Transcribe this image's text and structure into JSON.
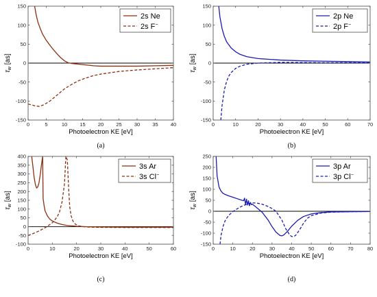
{
  "chart_data": [
    {
      "type": "line",
      "panel_label": "(a)",
      "xlabel": "Photoelectron KE [eV]",
      "ylabel_main": "τ",
      "ylabel_sub": "w",
      "ylabel_unit": "[as]",
      "xlim": [
        0,
        40
      ],
      "ylim": [
        -150,
        150
      ],
      "xticks": [
        0,
        5,
        10,
        15,
        20,
        25,
        30,
        35,
        40
      ],
      "yticks": [
        -150,
        -100,
        -50,
        0,
        50,
        100,
        150
      ],
      "legend_position": "top-right",
      "colors": {
        "primary": "#8b2e0f"
      },
      "series": [
        {
          "name": "2s Ne",
          "style": "solid",
          "x": [
            1.8,
            2.2,
            2.7,
            3.3,
            4,
            5,
            6,
            7,
            8,
            9,
            10,
            11,
            12,
            14,
            16,
            18,
            20,
            22,
            25,
            30,
            35,
            40
          ],
          "y": [
            150,
            128,
            108,
            92,
            76,
            60,
            47,
            35,
            24,
            14,
            6,
            1,
            -1,
            -3,
            -5,
            -7,
            -8,
            -8,
            -8,
            -8,
            -7,
            -6
          ]
        },
        {
          "name": "2s F",
          "name_sup": "−",
          "style": "dashed",
          "x": [
            0,
            1,
            2,
            3,
            4,
            5,
            6,
            7,
            8,
            10,
            12,
            14,
            16,
            18,
            20,
            25,
            30,
            35,
            40
          ],
          "y": [
            -108,
            -110,
            -113,
            -114,
            -111,
            -106,
            -100,
            -92,
            -84,
            -68,
            -56,
            -46,
            -39,
            -33,
            -29,
            -22,
            -18,
            -15,
            -12
          ]
        }
      ]
    },
    {
      "type": "line",
      "panel_label": "(b)",
      "xlabel": "Photoelectron KE [eV]",
      "ylabel_main": "τ",
      "ylabel_sub": "w",
      "ylabel_unit": "[as]",
      "xlim": [
        0,
        70
      ],
      "ylim": [
        -150,
        150
      ],
      "xticks": [
        0,
        10,
        20,
        30,
        40,
        50,
        60,
        70
      ],
      "yticks": [
        -150,
        -100,
        -50,
        0,
        50,
        100,
        150
      ],
      "legend_position": "top-right",
      "colors": {
        "primary": "#1a1ab5"
      },
      "series": [
        {
          "name": "2p Ne",
          "style": "solid",
          "x": [
            2.5,
            3,
            4,
            5,
            6,
            8,
            10,
            12,
            15,
            20,
            25,
            30,
            40,
            50,
            60,
            70
          ],
          "y": [
            150,
            122,
            90,
            70,
            56,
            40,
            30,
            23,
            17,
            12,
            10,
            8,
            6,
            5,
            4,
            3
          ]
        },
        {
          "name": "2p F",
          "name_sup": "−",
          "style": "dashed",
          "x": [
            3.4,
            4,
            5,
            6,
            7,
            8,
            10,
            12,
            15,
            20,
            25,
            30,
            40,
            50,
            60,
            70
          ],
          "y": [
            -150,
            -110,
            -70,
            -48,
            -34,
            -25,
            -14,
            -8,
            -3,
            0,
            1,
            2,
            1.5,
            1,
            1,
            1
          ]
        }
      ]
    },
    {
      "type": "line",
      "panel_label": "(c)",
      "xlabel": "Photoelectron KE [eV]",
      "ylabel_main": "τ",
      "ylabel_sub": "w",
      "ylabel_unit": "[as]",
      "xlim": [
        0,
        60
      ],
      "ylim": [
        -100,
        400
      ],
      "xticks": [
        0,
        10,
        20,
        30,
        40,
        50,
        60
      ],
      "yticks": [
        -100,
        -50,
        0,
        50,
        100,
        150,
        200,
        250,
        300,
        350,
        400
      ],
      "legend_position": "top-right",
      "colors": {
        "primary": "#8b2e0f"
      },
      "series": [
        {
          "name": "3s Ar",
          "style": "solid",
          "x": [
            1.5,
            2,
            2.5,
            3,
            3.5,
            4,
            4.5,
            5,
            5.5,
            6,
            6.2,
            6.6,
            7,
            8,
            9,
            10,
            12,
            14,
            16,
            20,
            25,
            30,
            40,
            50,
            60
          ],
          "y": [
            400,
            340,
            280,
            240,
            220,
            226,
            250,
            295,
            350,
            400,
            160,
            120,
            90,
            60,
            42,
            32,
            20,
            12,
            7,
            2,
            -1,
            -2,
            -3,
            -3,
            -3
          ]
        },
        {
          "name": "3s Cl",
          "name_sup": "−",
          "style": "dashed",
          "x": [
            0,
            2,
            4,
            6,
            8,
            10,
            12,
            13,
            14,
            15,
            15.6,
            16.2,
            16.8,
            17.2,
            17.8,
            18.5,
            19.5,
            21,
            23,
            26,
            30,
            40,
            50,
            60
          ],
          "y": [
            -50,
            -40,
            -28,
            -14,
            2,
            22,
            55,
            85,
            140,
            240,
            400,
            380,
            200,
            110,
            60,
            32,
            14,
            4,
            -1,
            -3,
            -4,
            -5,
            -5,
            -5
          ]
        }
      ]
    },
    {
      "type": "line",
      "panel_label": "(d)",
      "xlabel": "Photoelectron KE [eV]",
      "ylabel_main": "τ",
      "ylabel_sub": "w",
      "ylabel_unit": "[as]",
      "xlim": [
        0,
        80
      ],
      "ylim": [
        -150,
        250
      ],
      "xticks": [
        0,
        10,
        20,
        30,
        40,
        50,
        60,
        70,
        80
      ],
      "yticks": [
        -150,
        -100,
        -50,
        0,
        50,
        100,
        150,
        200,
        250
      ],
      "legend_position": "top-right",
      "colors": {
        "primary": "#1a1ab5"
      },
      "series": [
        {
          "name": "3p Ar",
          "style": "solid",
          "x": [
            1.5,
            2,
            3,
            4,
            5,
            6,
            8,
            10,
            12,
            14,
            15.5,
            16,
            16.5,
            17,
            17.5,
            18,
            18.5,
            19,
            19.5,
            20,
            22,
            25,
            28,
            30,
            32,
            34,
            35,
            36,
            38,
            40,
            43,
            46,
            50,
            55,
            60,
            70,
            80
          ],
          "y": [
            250,
            160,
            110,
            92,
            82,
            77,
            70,
            64,
            58,
            52,
            48,
            60,
            30,
            55,
            28,
            48,
            25,
            40,
            30,
            32,
            18,
            -5,
            -40,
            -70,
            -95,
            -110,
            -112,
            -108,
            -90,
            -68,
            -42,
            -24,
            -12,
            -6,
            -3,
            -2,
            -1
          ]
        },
        {
          "name": "3p Cl",
          "name_sup": "−",
          "style": "dashed",
          "x": [
            3.5,
            4,
            5,
            6,
            7,
            8,
            10,
            12,
            15,
            18,
            20,
            22,
            25,
            28,
            30,
            32,
            35,
            37,
            39,
            40,
            41,
            42,
            44,
            46,
            48,
            50,
            55,
            60,
            70,
            80
          ],
          "y": [
            -150,
            -110,
            -70,
            -45,
            -30,
            -18,
            -2,
            10,
            25,
            34,
            38,
            38,
            32,
            22,
            12,
            0,
            -40,
            -80,
            -108,
            -115,
            -115,
            -110,
            -85,
            -55,
            -32,
            -20,
            -8,
            -4,
            -2,
            -1
          ]
        }
      ]
    }
  ]
}
